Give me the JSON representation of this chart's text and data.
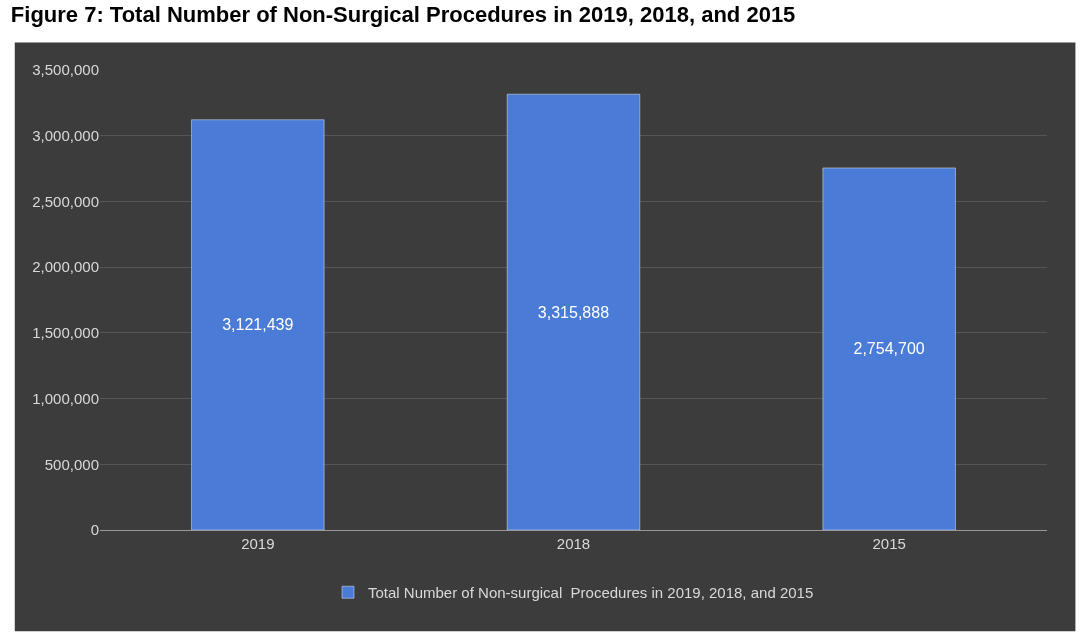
{
  "chart_data": {
    "type": "bar",
    "title": "Figure 7: Total Number of Non-Surgical Procedures in 2019, 2018, and 2015",
    "categories": [
      "2019",
      "2018",
      "2015"
    ],
    "series": [
      {
        "name": "Total Number of Non-surgical  Procedures in 2019, 2018, and 2015",
        "color": "#4a7bd6",
        "values": [
          3121439,
          3315888,
          2754700
        ],
        "value_labels": [
          "3,121,439",
          "3,315,888",
          "2,754,700"
        ]
      }
    ],
    "ylim": [
      0,
      3500000
    ],
    "yticks": [
      {
        "value": 0,
        "label": "0"
      },
      {
        "value": 500000,
        "label": "500,000"
      },
      {
        "value": 1000000,
        "label": "1,000,000"
      },
      {
        "value": 1500000,
        "label": "1,500,000"
      },
      {
        "value": 2000000,
        "label": "2,000,000"
      },
      {
        "value": 2500000,
        "label": "2,500,000"
      },
      {
        "value": 3000000,
        "label": "3,000,000"
      },
      {
        "value": 3500000,
        "label": "3,500,000"
      }
    ],
    "grid": "y",
    "legend": "bottom"
  }
}
